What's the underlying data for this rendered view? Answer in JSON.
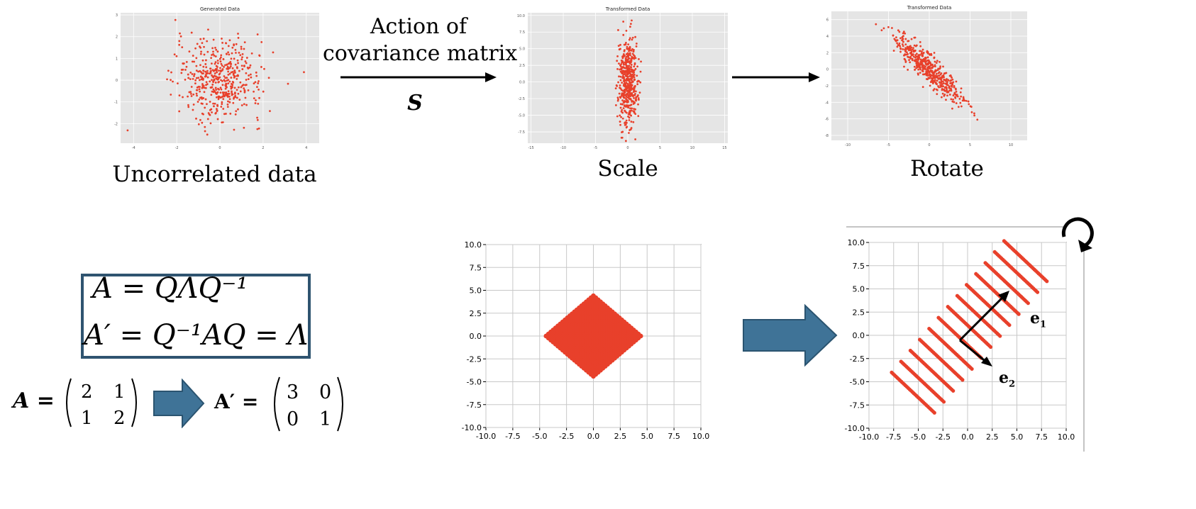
{
  "top_row": {
    "plot1": {
      "title": "Generated Data",
      "caption": "Uncorrelated data",
      "xticks": [
        "-4",
        "-2",
        "0",
        "2",
        "4"
      ],
      "yticks": [
        "3",
        "2",
        "1",
        "0",
        "-1",
        "-2"
      ]
    },
    "arrow1": {
      "line1": "Action of",
      "line2": "covariance matrix",
      "symbol": "S"
    },
    "plot2": {
      "title": "Transformed Data",
      "caption": "Scale",
      "xticks": [
        "-15",
        "-10",
        "-5",
        "0",
        "5",
        "10",
        "15"
      ],
      "yticks": [
        "10.0",
        "7.5",
        "5.0",
        "2.5",
        "0.0",
        "-2.5",
        "-5.0",
        "-7.5"
      ]
    },
    "plot3": {
      "title": "Transformed Data",
      "caption": "Rotate",
      "xticks": [
        "-10",
        "-5",
        "0",
        "5",
        "10"
      ],
      "yticks": [
        "6",
        "4",
        "2",
        "0",
        "-2",
        "-4",
        "-6",
        "-8"
      ]
    }
  },
  "equations": {
    "line1": "A = QΛQ⁻¹",
    "line2": "A′ = Q⁻¹AQ = Λ",
    "matrix_A_label": "A =",
    "matrix_A": [
      [
        "2",
        "1"
      ],
      [
        "1",
        "2"
      ]
    ],
    "matrix_Ap_label": "A′ =",
    "matrix_Ap": [
      [
        "3",
        "0"
      ],
      [
        "0",
        "1"
      ]
    ]
  },
  "bottom_plots": {
    "diamond": {
      "ticks": [
        "10.0",
        "7.5",
        "5.0",
        "2.5",
        "0.0",
        "-2.5",
        "-5.0",
        "-7.5",
        "-10.0"
      ],
      "xticks": [
        "-10.0",
        "-7.5",
        "-5.0",
        "-2.5",
        "0.0",
        "2.5",
        "5.0",
        "7.5",
        "10.0"
      ]
    },
    "rotated": {
      "ticks": [
        "10.0",
        "7.5",
        "5.0",
        "2.5",
        "0.0",
        "-2.5",
        "-5.0",
        "-7.5",
        "-10.0"
      ],
      "xticks": [
        "-10.0",
        "-7.5",
        "-5.0",
        "-2.5",
        "0.0",
        "2.5",
        "5.0",
        "7.5",
        "10.0"
      ],
      "e1": "e",
      "e1_sub": "1",
      "e2": "e",
      "e2_sub": "2"
    }
  },
  "colors": {
    "points": "#e8402b",
    "arrow_fill": "#3f7397",
    "arrow_stroke": "#2b5470",
    "plot_bg": "#e5e5e5"
  }
}
